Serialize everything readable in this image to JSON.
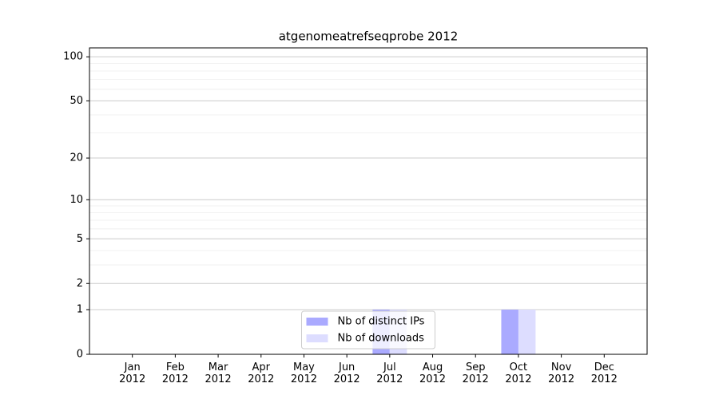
{
  "chart_data": {
    "type": "bar",
    "title": "atgenomeatrefseqprobe 2012",
    "categories": [
      "Jan\n2012",
      "Feb\n2012",
      "Mar\n2012",
      "Apr\n2012",
      "May\n2012",
      "Jun\n2012",
      "Jul\n2012",
      "Aug\n2012",
      "Sep\n2012",
      "Oct\n2012",
      "Nov\n2012",
      "Dec\n2012"
    ],
    "series": [
      {
        "name": "Nb of distinct IPs",
        "color": "#aaaaff",
        "values": [
          0,
          0,
          0,
          0,
          0,
          0,
          1,
          0,
          0,
          1,
          0,
          0
        ]
      },
      {
        "name": "Nb of downloads",
        "color": "#ddddff",
        "values": [
          0,
          0,
          0,
          0,
          0,
          0,
          1,
          0,
          0,
          1,
          0,
          0
        ]
      }
    ],
    "yscale": "log1p",
    "ylim": [
      0,
      115
    ],
    "yticks": [
      0,
      1,
      2,
      5,
      10,
      20,
      50,
      100
    ],
    "grid": true,
    "legend": "lower center"
  }
}
